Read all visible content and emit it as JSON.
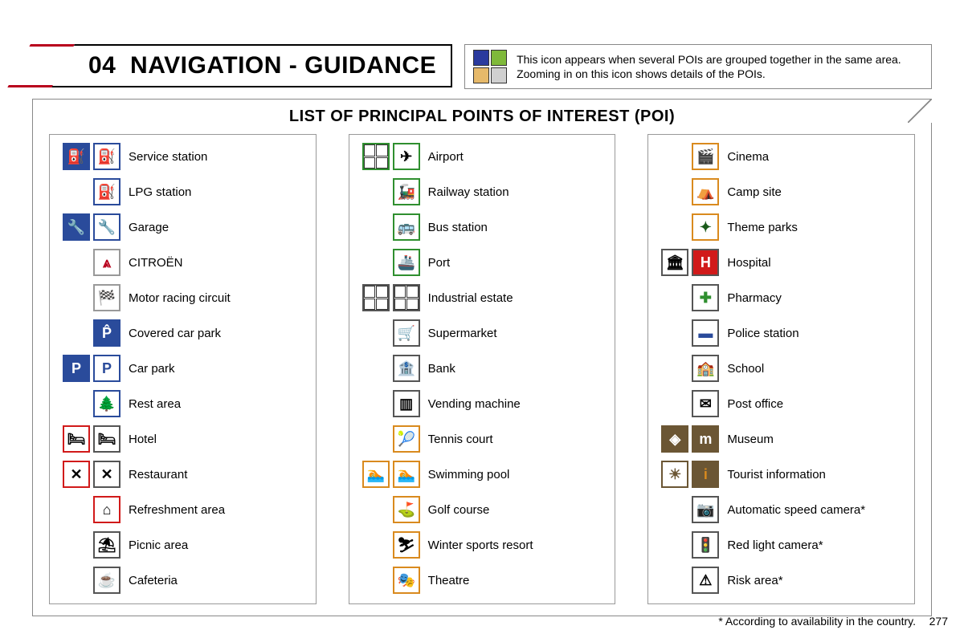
{
  "header": {
    "section_number": "04",
    "title": "NAVIGATION - GUIDANCE",
    "note_text": "This icon appears when several POIs are grouped together in the same area. Zooming in on this icon shows details of the POIs.",
    "note_swatch_colors": [
      "#2a3a9e",
      "#7fb93a",
      "#e6b96a",
      "#d0d0d0"
    ]
  },
  "subheading": "LIST OF PRINCIPAL POINTS OF INTEREST (POI)",
  "colors": {
    "accent_red": "#b8001c",
    "border_gray": "#888888",
    "blue": "#2a4b9b",
    "green": "#2f8f2f",
    "orange": "#d98a1e",
    "brown": "#6b5634",
    "black": "#000000",
    "red": "#d11a1a"
  },
  "columns": [
    [
      {
        "label": "Service station",
        "icons": [
          {
            "border": "#2a4b9b",
            "bg": "#2a4b9b",
            "fg": "#fff",
            "glyph": "⛽"
          },
          {
            "border": "#2a4b9b",
            "bg": "#fff",
            "fg": "#000",
            "glyph": "⛽"
          }
        ]
      },
      {
        "label": "LPG station",
        "icons": [
          {
            "border": "#2a4b9b",
            "bg": "#fff",
            "fg": "#000",
            "glyph": "⛽"
          }
        ]
      },
      {
        "label": "Garage",
        "icons": [
          {
            "border": "#2a4b9b",
            "bg": "#2a4b9b",
            "fg": "#fff",
            "glyph": "🔧"
          },
          {
            "border": "#2a4b9b",
            "bg": "#fff",
            "fg": "#000",
            "glyph": "🔧"
          }
        ]
      },
      {
        "label": "CITROËN",
        "icons": [
          {
            "border": "#999",
            "bg": "#fff",
            "fg": "#b8001c",
            "glyph": "⩓"
          }
        ]
      },
      {
        "label": "Motor racing circuit",
        "icons": [
          {
            "border": "#999",
            "bg": "#fff",
            "fg": "#555",
            "glyph": "🏁"
          }
        ]
      },
      {
        "label": "Covered car park",
        "icons": [
          {
            "border": "#2a4b9b",
            "bg": "#2a4b9b",
            "fg": "#fff",
            "glyph": "P̂"
          }
        ]
      },
      {
        "label": "Car park",
        "icons": [
          {
            "border": "#2a4b9b",
            "bg": "#2a4b9b",
            "fg": "#fff",
            "glyph": "P"
          },
          {
            "border": "#2a4b9b",
            "bg": "#fff",
            "fg": "#2a4b9b",
            "glyph": "P"
          }
        ]
      },
      {
        "label": "Rest area",
        "icons": [
          {
            "border": "#2a4b9b",
            "bg": "#fff",
            "fg": "#1a5a1a",
            "glyph": "🌲"
          }
        ]
      },
      {
        "label": "Hotel",
        "icons": [
          {
            "border": "#d11a1a",
            "bg": "#fff",
            "fg": "#000",
            "glyph": "🛏"
          },
          {
            "border": "#555",
            "bg": "#fff",
            "fg": "#000",
            "glyph": "🛏"
          }
        ]
      },
      {
        "label": "Restaurant",
        "icons": [
          {
            "border": "#d11a1a",
            "bg": "#fff",
            "fg": "#000",
            "glyph": "✕"
          },
          {
            "border": "#555",
            "bg": "#fff",
            "fg": "#000",
            "glyph": "✕"
          }
        ]
      },
      {
        "label": "Refreshment area",
        "icons": [
          {
            "border": "#d11a1a",
            "bg": "#fff",
            "fg": "#000",
            "glyph": "⌂"
          }
        ]
      },
      {
        "label": "Picnic area",
        "icons": [
          {
            "border": "#555",
            "bg": "#fff",
            "fg": "#000",
            "glyph": "⛱"
          }
        ]
      },
      {
        "label": "Cafeteria",
        "icons": [
          {
            "border": "#555",
            "bg": "#fff",
            "fg": "#000",
            "glyph": "☕"
          }
        ]
      }
    ],
    [
      {
        "label": "Airport",
        "icons": [
          {
            "quad": true,
            "border": "#2f8f2f"
          },
          {
            "border": "#2f8f2f",
            "bg": "#fff",
            "fg": "#000",
            "glyph": "✈"
          }
        ]
      },
      {
        "label": "Railway station",
        "icons": [
          {
            "border": "#2f8f2f",
            "bg": "#fff",
            "fg": "#000",
            "glyph": "🚂"
          }
        ]
      },
      {
        "label": "Bus station",
        "icons": [
          {
            "border": "#2f8f2f",
            "bg": "#fff",
            "fg": "#000",
            "glyph": "🚌"
          }
        ]
      },
      {
        "label": "Port",
        "icons": [
          {
            "border": "#2f8f2f",
            "bg": "#fff",
            "fg": "#000",
            "glyph": "🚢"
          }
        ]
      },
      {
        "label": "Industrial estate",
        "icons": [
          {
            "quad": true,
            "border": "#555"
          },
          {
            "quad": true,
            "border": "#555"
          }
        ]
      },
      {
        "label": "Supermarket",
        "icons": [
          {
            "border": "#555",
            "bg": "#fff",
            "fg": "#000",
            "glyph": "🛒"
          }
        ]
      },
      {
        "label": "Bank",
        "icons": [
          {
            "border": "#555",
            "bg": "#fff",
            "fg": "#000",
            "glyph": "🏦"
          }
        ]
      },
      {
        "label": "Vending machine",
        "icons": [
          {
            "border": "#555",
            "bg": "#fff",
            "fg": "#000",
            "glyph": "▥"
          }
        ]
      },
      {
        "label": "Tennis court",
        "icons": [
          {
            "border": "#d98a1e",
            "bg": "#fff",
            "fg": "#000",
            "glyph": "🎾"
          }
        ]
      },
      {
        "label": "Swimming pool",
        "icons": [
          {
            "border": "#d98a1e",
            "bg": "#fff",
            "fg": "#000",
            "glyph": "🏊"
          },
          {
            "border": "#d98a1e",
            "bg": "#fff",
            "fg": "#000",
            "glyph": "🏊"
          }
        ]
      },
      {
        "label": "Golf course",
        "icons": [
          {
            "border": "#d98a1e",
            "bg": "#fff",
            "fg": "#000",
            "glyph": "⛳"
          }
        ]
      },
      {
        "label": "Winter sports resort",
        "icons": [
          {
            "border": "#d98a1e",
            "bg": "#fff",
            "fg": "#000",
            "glyph": "⛷"
          }
        ]
      },
      {
        "label": "Theatre",
        "icons": [
          {
            "border": "#d98a1e",
            "bg": "#fff",
            "fg": "#000",
            "glyph": "🎭"
          }
        ]
      }
    ],
    [
      {
        "label": "Cinema",
        "icons": [
          {
            "border": "#d98a1e",
            "bg": "#fff",
            "fg": "#000",
            "glyph": "🎬"
          }
        ]
      },
      {
        "label": "Camp site",
        "icons": [
          {
            "border": "#d98a1e",
            "bg": "#fff",
            "fg": "#000",
            "glyph": "⛺"
          }
        ]
      },
      {
        "label": "Theme parks",
        "icons": [
          {
            "border": "#d98a1e",
            "bg": "#fff",
            "fg": "#1a5a1a",
            "glyph": "✦"
          }
        ]
      },
      {
        "label": "Hospital",
        "icons": [
          {
            "border": "#555",
            "bg": "#fff",
            "fg": "#000",
            "glyph": "🏛"
          },
          {
            "border": "#555",
            "bg": "#d11a1a",
            "fg": "#fff",
            "glyph": "H"
          }
        ]
      },
      {
        "label": "Pharmacy",
        "icons": [
          {
            "border": "#555",
            "bg": "#fff",
            "fg": "#2f8f2f",
            "glyph": "✚"
          }
        ]
      },
      {
        "label": "Police station",
        "icons": [
          {
            "border": "#555",
            "bg": "#fff",
            "fg": "#2a4b9b",
            "glyph": "▬"
          }
        ]
      },
      {
        "label": "School",
        "icons": [
          {
            "border": "#555",
            "bg": "#fff",
            "fg": "#000",
            "glyph": "🏫"
          }
        ]
      },
      {
        "label": "Post office",
        "icons": [
          {
            "border": "#555",
            "bg": "#fff",
            "fg": "#000",
            "glyph": "✉"
          }
        ]
      },
      {
        "label": "Museum",
        "icons": [
          {
            "border": "#6b5634",
            "bg": "#6b5634",
            "fg": "#fff",
            "glyph": "◈"
          },
          {
            "border": "#6b5634",
            "bg": "#6b5634",
            "fg": "#fff",
            "glyph": "m"
          }
        ]
      },
      {
        "label": "Tourist information",
        "icons": [
          {
            "border": "#6b5634",
            "bg": "#fff",
            "fg": "#6b5634",
            "glyph": "☀"
          },
          {
            "border": "#6b5634",
            "bg": "#6b5634",
            "fg": "#d98a1e",
            "glyph": "i"
          }
        ]
      },
      {
        "label": "Automatic speed camera*",
        "icons": [
          {
            "border": "#555",
            "bg": "#fff",
            "fg": "#000",
            "glyph": "📷"
          }
        ]
      },
      {
        "label": "Red light camera*",
        "icons": [
          {
            "border": "#555",
            "bg": "#fff",
            "fg": "#000",
            "glyph": "🚦"
          }
        ]
      },
      {
        "label": "Risk area*",
        "icons": [
          {
            "border": "#555",
            "bg": "#fff",
            "fg": "#000",
            "glyph": "⚠"
          }
        ]
      }
    ]
  ],
  "footnote": "* According to availability in the country.",
  "page_number": "277"
}
